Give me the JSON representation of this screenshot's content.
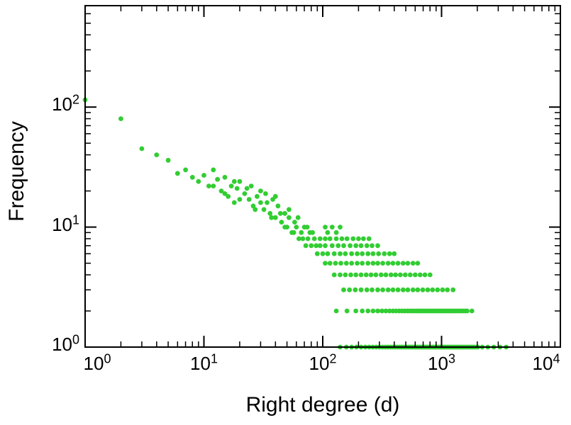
{
  "chart_data": {
    "type": "scatter",
    "title": "",
    "xlabel": "Right degree (d)",
    "ylabel": "Frequency",
    "xscale": "log",
    "yscale": "log",
    "xlim": [
      1,
      10000
    ],
    "ylim": [
      1,
      700
    ],
    "grid": false,
    "legend": "none",
    "x_tick_exponents": [
      0,
      1,
      2,
      3,
      4
    ],
    "y_tick_exponents": [
      0,
      1,
      2
    ],
    "marker": {
      "shape": "circle",
      "color": "#32cd32",
      "radius": 3.4
    },
    "axis_color": "#000000",
    "points": [
      [
        1,
        115
      ],
      [
        2,
        80
      ],
      [
        3,
        45
      ],
      [
        4,
        40
      ],
      [
        5,
        36
      ],
      [
        6,
        28
      ],
      [
        7,
        30
      ],
      [
        8,
        26
      ],
      [
        9,
        24
      ],
      [
        10,
        27
      ],
      [
        11,
        22
      ],
      [
        12,
        30
      ],
      [
        12,
        22
      ],
      [
        13,
        25
      ],
      [
        14,
        20
      ],
      [
        15,
        26
      ],
      [
        15,
        19
      ],
      [
        16,
        18
      ],
      [
        17,
        22
      ],
      [
        18,
        16
      ],
      [
        18,
        24
      ],
      [
        19,
        21
      ],
      [
        20,
        24
      ],
      [
        20,
        17
      ],
      [
        22,
        19
      ],
      [
        23,
        21
      ],
      [
        24,
        17
      ],
      [
        25,
        22
      ],
      [
        26,
        15
      ],
      [
        27,
        14
      ],
      [
        28,
        18
      ],
      [
        30,
        20
      ],
      [
        30,
        16
      ],
      [
        32,
        14
      ],
      [
        33,
        19
      ],
      [
        34,
        16
      ],
      [
        36,
        13
      ],
      [
        37,
        12
      ],
      [
        38,
        17
      ],
      [
        40,
        12
      ],
      [
        40,
        18
      ],
      [
        42,
        15
      ],
      [
        44,
        13
      ],
      [
        45,
        11
      ],
      [
        48,
        13
      ],
      [
        48,
        10
      ],
      [
        50,
        10
      ],
      [
        52,
        12
      ],
      [
        52,
        14
      ],
      [
        55,
        9
      ],
      [
        57,
        9
      ],
      [
        58,
        11
      ],
      [
        60,
        10
      ],
      [
        62,
        12
      ],
      [
        63,
        8
      ],
      [
        66,
        9
      ],
      [
        68,
        8
      ],
      [
        70,
        10
      ],
      [
        72,
        7
      ],
      [
        74,
        10
      ],
      [
        75,
        8
      ],
      [
        78,
        9
      ],
      [
        80,
        7
      ],
      [
        82,
        9
      ],
      [
        85,
        8
      ],
      [
        88,
        7
      ],
      [
        90,
        6
      ],
      [
        95,
        7
      ],
      [
        95,
        8
      ],
      [
        100,
        6
      ],
      [
        105,
        10
      ],
      [
        120,
        10
      ],
      [
        140,
        10
      ],
      [
        110,
        9
      ],
      [
        130,
        9
      ],
      [
        105,
        8
      ],
      [
        115,
        8
      ],
      [
        130,
        8
      ],
      [
        145,
        8
      ],
      [
        160,
        8
      ],
      [
        180,
        8
      ],
      [
        200,
        8
      ],
      [
        220,
        8
      ],
      [
        245,
        8
      ],
      [
        105,
        7
      ],
      [
        120,
        7
      ],
      [
        135,
        7
      ],
      [
        150,
        7
      ],
      [
        170,
        7
      ],
      [
        190,
        7
      ],
      [
        210,
        7
      ],
      [
        235,
        7
      ],
      [
        260,
        7
      ],
      [
        290,
        7
      ],
      [
        110,
        6
      ],
      [
        125,
        6
      ],
      [
        140,
        6
      ],
      [
        155,
        6
      ],
      [
        175,
        6
      ],
      [
        195,
        6
      ],
      [
        215,
        6
      ],
      [
        240,
        6
      ],
      [
        265,
        6
      ],
      [
        295,
        6
      ],
      [
        330,
        6
      ],
      [
        365,
        6
      ],
      [
        400,
        6
      ],
      [
        105,
        5
      ],
      [
        115,
        5
      ],
      [
        128,
        5
      ],
      [
        142,
        5
      ],
      [
        158,
        5
      ],
      [
        175,
        5
      ],
      [
        195,
        5
      ],
      [
        215,
        5
      ],
      [
        240,
        5
      ],
      [
        265,
        5
      ],
      [
        290,
        5
      ],
      [
        320,
        5
      ],
      [
        355,
        5
      ],
      [
        390,
        5
      ],
      [
        430,
        5
      ],
      [
        475,
        5
      ],
      [
        520,
        5
      ],
      [
        575,
        5
      ],
      [
        630,
        5
      ],
      [
        125,
        4
      ],
      [
        140,
        4
      ],
      [
        155,
        4
      ],
      [
        172,
        4
      ],
      [
        190,
        4
      ],
      [
        210,
        4
      ],
      [
        232,
        4
      ],
      [
        255,
        4
      ],
      [
        280,
        4
      ],
      [
        310,
        4
      ],
      [
        340,
        4
      ],
      [
        375,
        4
      ],
      [
        410,
        4
      ],
      [
        450,
        4
      ],
      [
        495,
        4
      ],
      [
        545,
        4
      ],
      [
        600,
        4
      ],
      [
        660,
        4
      ],
      [
        725,
        4
      ],
      [
        800,
        4
      ],
      [
        150,
        3
      ],
      [
        168,
        3
      ],
      [
        188,
        3
      ],
      [
        210,
        3
      ],
      [
        235,
        3
      ],
      [
        260,
        3
      ],
      [
        290,
        3
      ],
      [
        320,
        3
      ],
      [
        355,
        3
      ],
      [
        390,
        3
      ],
      [
        430,
        3
      ],
      [
        475,
        3
      ],
      [
        520,
        3
      ],
      [
        575,
        3
      ],
      [
        630,
        3
      ],
      [
        695,
        3
      ],
      [
        765,
        3
      ],
      [
        840,
        3
      ],
      [
        925,
        3
      ],
      [
        1020,
        3
      ],
      [
        1120,
        3
      ],
      [
        1250,
        3
      ],
      [
        130,
        2
      ],
      [
        160,
        2
      ],
      [
        190,
        2
      ],
      [
        215,
        2
      ],
      [
        240,
        2
      ],
      [
        265,
        2
      ],
      [
        290,
        2
      ],
      [
        315,
        2
      ],
      [
        340,
        2
      ],
      [
        365,
        2
      ],
      [
        390,
        2
      ],
      [
        415,
        2
      ],
      [
        440,
        2
      ],
      [
        465,
        2
      ],
      [
        490,
        2
      ],
      [
        515,
        2
      ],
      [
        540,
        2
      ],
      [
        565,
        2
      ],
      [
        590,
        2
      ],
      [
        615,
        2
      ],
      [
        640,
        2
      ],
      [
        665,
        2
      ],
      [
        690,
        2
      ],
      [
        715,
        2
      ],
      [
        745,
        2
      ],
      [
        775,
        2
      ],
      [
        805,
        2
      ],
      [
        835,
        2
      ],
      [
        865,
        2
      ],
      [
        900,
        2
      ],
      [
        935,
        2
      ],
      [
        970,
        2
      ],
      [
        1005,
        2
      ],
      [
        1045,
        2
      ],
      [
        1085,
        2
      ],
      [
        1125,
        2
      ],
      [
        1170,
        2
      ],
      [
        1215,
        2
      ],
      [
        1260,
        2
      ],
      [
        1310,
        2
      ],
      [
        1360,
        2
      ],
      [
        1410,
        2
      ],
      [
        1465,
        2
      ],
      [
        1520,
        2
      ],
      [
        1580,
        2
      ],
      [
        1640,
        2
      ],
      [
        1800,
        2
      ],
      [
        140,
        1
      ],
      [
        158,
        1
      ],
      [
        175,
        1
      ],
      [
        192,
        1
      ],
      [
        210,
        1
      ],
      [
        228,
        1
      ],
      [
        246,
        1
      ],
      [
        264,
        1
      ],
      [
        282,
        1
      ],
      [
        300,
        1
      ],
      [
        318,
        1
      ],
      [
        336,
        1
      ],
      [
        354,
        1
      ],
      [
        372,
        1
      ],
      [
        390,
        1
      ],
      [
        408,
        1
      ],
      [
        426,
        1
      ],
      [
        444,
        1
      ],
      [
        462,
        1
      ],
      [
        480,
        1
      ],
      [
        498,
        1
      ],
      [
        516,
        1
      ],
      [
        534,
        1
      ],
      [
        552,
        1
      ],
      [
        570,
        1
      ],
      [
        590,
        1
      ],
      [
        610,
        1
      ],
      [
        630,
        1
      ],
      [
        650,
        1
      ],
      [
        670,
        1
      ],
      [
        690,
        1
      ],
      [
        710,
        1
      ],
      [
        730,
        1
      ],
      [
        752,
        1
      ],
      [
        774,
        1
      ],
      [
        796,
        1
      ],
      [
        820,
        1
      ],
      [
        845,
        1
      ],
      [
        870,
        1
      ],
      [
        895,
        1
      ],
      [
        920,
        1
      ],
      [
        950,
        1
      ],
      [
        980,
        1
      ],
      [
        1010,
        1
      ],
      [
        1040,
        1
      ],
      [
        1075,
        1
      ],
      [
        1110,
        1
      ],
      [
        1145,
        1
      ],
      [
        1180,
        1
      ],
      [
        1220,
        1
      ],
      [
        1260,
        1
      ],
      [
        1300,
        1
      ],
      [
        1345,
        1
      ],
      [
        1390,
        1
      ],
      [
        1435,
        1
      ],
      [
        1485,
        1
      ],
      [
        1535,
        1
      ],
      [
        1590,
        1
      ],
      [
        1645,
        1
      ],
      [
        1700,
        1
      ],
      [
        1760,
        1
      ],
      [
        1820,
        1
      ],
      [
        1880,
        1
      ],
      [
        1950,
        1
      ],
      [
        2020,
        1
      ],
      [
        2200,
        1
      ],
      [
        2450,
        1
      ],
      [
        2750,
        1
      ],
      [
        3100,
        1
      ],
      [
        3500,
        1
      ]
    ]
  }
}
